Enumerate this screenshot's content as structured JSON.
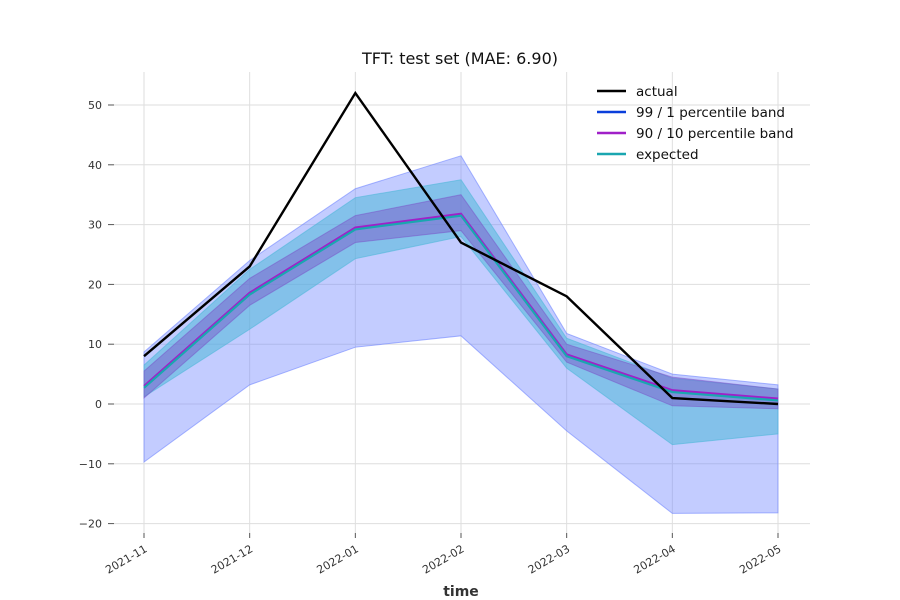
{
  "chart_data": {
    "type": "line",
    "title": "TFT: test set (MAE: 6.90)",
    "xlabel": "time",
    "ylabel": "",
    "categories": [
      "2021-11",
      "2021-12",
      "2022-01",
      "2022-02",
      "2022-03",
      "2022-04",
      "2022-05"
    ],
    "ylim": [
      -22,
      55.5
    ],
    "yticks": [
      -20,
      -10,
      0,
      10,
      20,
      30,
      40,
      50
    ],
    "ytick_labels": [
      "−20",
      "−10",
      "0",
      "10",
      "20",
      "30",
      "40",
      "50"
    ],
    "grid": true,
    "legend_position": "top-right",
    "series": [
      {
        "name": "actual",
        "color": "#000000",
        "values": [
          8,
          23,
          52,
          27,
          18,
          1,
          0
        ]
      },
      {
        "name": "99 / 1 percentile band",
        "color": "#0a3fdb",
        "lower": [
          -9.7,
          3.2,
          9.5,
          11.4,
          -4.5,
          -18.3,
          -18.2
        ],
        "upper": [
          8.7,
          24,
          36,
          41.5,
          11.8,
          5,
          3.2
        ]
      },
      {
        "name": "90 / 10 percentile band",
        "color": "#a020c8",
        "lower": [
          1,
          16.5,
          27,
          29,
          7,
          -0.3,
          -0.8
        ],
        "upper": [
          5.5,
          21,
          31.5,
          35,
          10,
          4.5,
          2.5
        ]
      },
      {
        "name": "expected",
        "color": "#1aa6b0",
        "values": [
          2.7,
          18.3,
          29.2,
          31.5,
          8,
          2,
          0.6
        ]
      }
    ],
    "teal_band": {
      "color": "#4fb8d8",
      "lower": [
        1.2,
        12.5,
        24.3,
        28,
        6,
        -6.8,
        -5
      ],
      "upper": [
        6.5,
        22.5,
        34.5,
        37.5,
        11,
        4.3,
        2.5
      ]
    },
    "x_data_label": "time"
  }
}
